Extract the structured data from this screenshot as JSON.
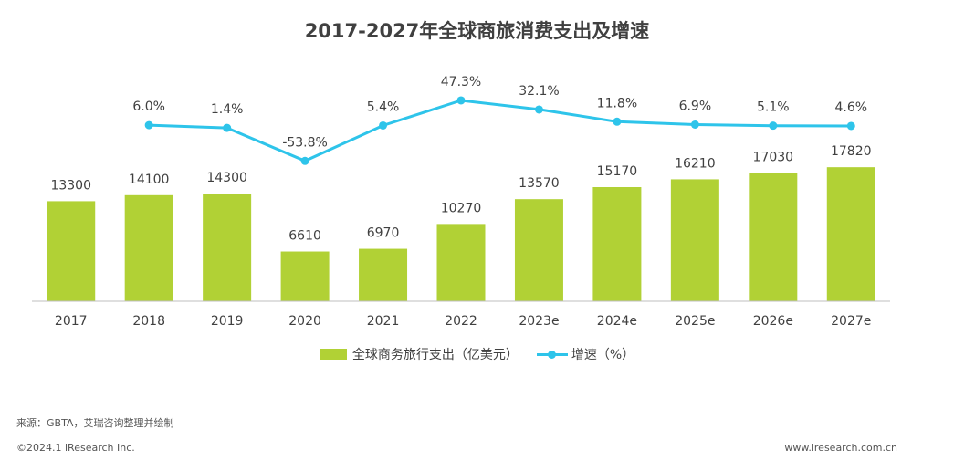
{
  "title": "2017-2027年全球商旅消费支出及增速",
  "chart_data": {
    "type": "bar",
    "title": "2017-2027年全球商旅消费支出及增速",
    "categories": [
      "2017",
      "2018",
      "2019",
      "2020",
      "2021",
      "2022",
      "2023e",
      "2024e",
      "2025e",
      "2026e",
      "2027e"
    ],
    "series": [
      {
        "name": "全球商务旅行支出（亿美元）",
        "type": "bar",
        "color": "#b1d135",
        "values": [
          13300,
          14100,
          14300,
          6610,
          6970,
          10270,
          13570,
          15170,
          16210,
          17030,
          17820
        ]
      },
      {
        "name": "增速（%）",
        "type": "line",
        "color": "#2ec4ea",
        "values": [
          null,
          6.0,
          1.4,
          -53.8,
          5.4,
          47.3,
          32.1,
          11.8,
          6.9,
          5.1,
          4.6
        ],
        "labels": [
          "",
          "6.0%",
          "1.4%",
          "-53.8%",
          "5.4%",
          "47.3%",
          "32.1%",
          "11.8%",
          "6.9%",
          "5.1%",
          "4.6%"
        ]
      }
    ],
    "legend_position": "bottom",
    "grid": false
  },
  "legend": {
    "bar_label": "全球商务旅行支出（亿美元）",
    "line_label": "增速（%）"
  },
  "footer": {
    "source": "来源：GBTA，艾瑞咨询整理并绘制",
    "copyright": "©2024.1 iResearch Inc.",
    "website": "www.iresearch.com.cn"
  }
}
